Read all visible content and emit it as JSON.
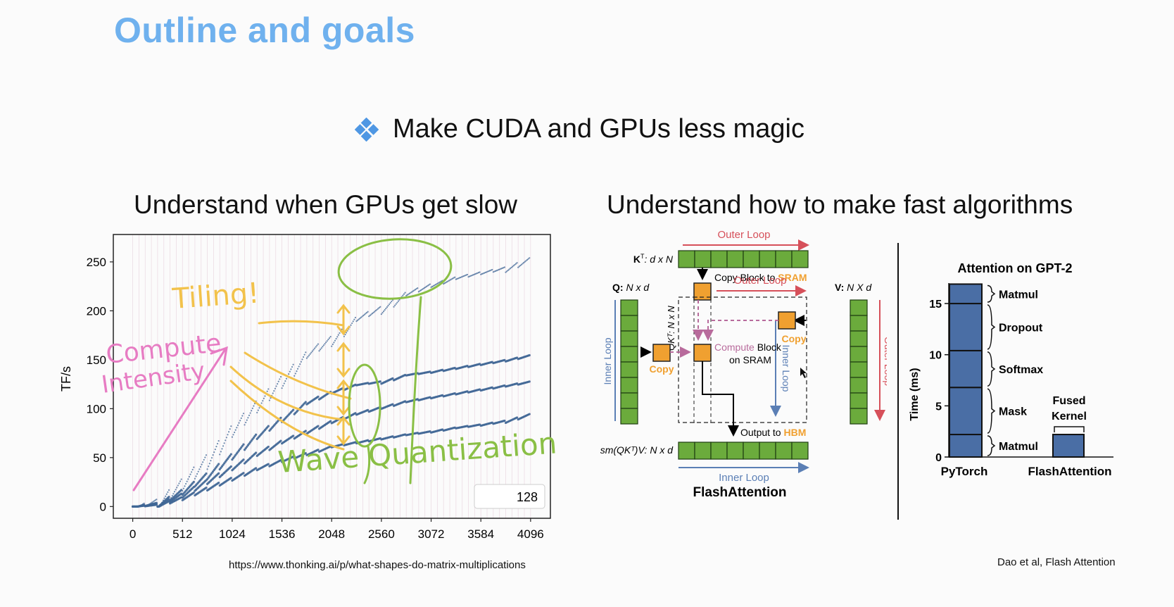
{
  "slide": {
    "title": "Outline and goals",
    "bullet": "Make CUDA and GPUs less magic",
    "left_heading": "Understand when GPUs get slow",
    "right_heading": "Understand how to make fast algorithms",
    "left_source": "https://www.thonking.ai/p/what-shapes-do-matrix-multiplications",
    "right_source": "Dao et al, Flash Attention",
    "colors": {
      "title": "#6fb1ee",
      "bullet": "#4f97e3",
      "series": "#3f6695",
      "yellow_ink": "#f2c24b",
      "green_ink": "#8abf45",
      "pink_ink": "#e77cc3"
    }
  },
  "tflops_chart": {
    "ylabel": "TF/s",
    "yticks": [
      "250",
      "200",
      "150",
      "100",
      "50",
      "0"
    ],
    "xticks": [
      "0",
      "512",
      "1024",
      "1536",
      "2048",
      "2560",
      "3072",
      "3584",
      "4096"
    ],
    "legend": "128",
    "annotations": {
      "tiling": "Tiling!",
      "compute_1": "Compute",
      "compute_2": "Intensity",
      "wave": "Wave Quantization"
    }
  },
  "chart_data": [
    {
      "type": "scatter",
      "xlabel": "",
      "ylabel": "TF/s",
      "xlim": [
        -200,
        4300
      ],
      "ylim": [
        -12,
        278
      ],
      "x_ticks": [
        0,
        512,
        1024,
        1536,
        2048,
        2560,
        3072,
        3584,
        4096
      ],
      "y_ticks": [
        0,
        50,
        100,
        150,
        200,
        250
      ],
      "legend": [
        "128"
      ],
      "legend_position": "bottom-right",
      "series": [
        {
          "values": [
            [
              0,
              0
            ],
            [
              256,
              8
            ],
            [
              512,
              30
            ],
            [
              768,
              55
            ],
            [
              1024,
              85
            ],
            [
              1280,
              110
            ],
            [
              1536,
              135
            ],
            [
              1792,
              160
            ],
            [
              2048,
              175
            ],
            [
              2304,
              195
            ],
            [
              2560,
              205
            ],
            [
              2816,
              220
            ],
            [
              3072,
              228
            ],
            [
              3328,
              235
            ],
            [
              3584,
              240
            ],
            [
              3840,
              245
            ],
            [
              4096,
              255
            ]
          ]
        },
        {
          "values": [
            [
              0,
              0
            ],
            [
              256,
              4
            ],
            [
              512,
              18
            ],
            [
              768,
              35
            ],
            [
              1024,
              55
            ],
            [
              1280,
              75
            ],
            [
              1536,
              92
            ],
            [
              1792,
              108
            ],
            [
              2048,
              118
            ],
            [
              2304,
              125
            ],
            [
              2560,
              128
            ],
            [
              2816,
              135
            ],
            [
              3072,
              138
            ],
            [
              3328,
              142
            ],
            [
              3584,
              146
            ],
            [
              3840,
              150
            ],
            [
              4096,
              155
            ]
          ]
        },
        {
          "values": [
            [
              0,
              0
            ],
            [
              256,
              3
            ],
            [
              512,
              14
            ],
            [
              768,
              28
            ],
            [
              1024,
              42
            ],
            [
              1280,
              56
            ],
            [
              1536,
              68
            ],
            [
              1792,
              78
            ],
            [
              2048,
              88
            ],
            [
              2304,
              96
            ],
            [
              2560,
              102
            ],
            [
              2816,
              108
            ],
            [
              3072,
              112
            ],
            [
              3328,
              116
            ],
            [
              3584,
              120
            ],
            [
              3840,
              124
            ],
            [
              4096,
              128
            ]
          ]
        },
        {
          "values": [
            [
              0,
              0
            ],
            [
              256,
              2
            ],
            [
              512,
              10
            ],
            [
              768,
              20
            ],
            [
              1024,
              30
            ],
            [
              1280,
              40
            ],
            [
              1536,
              48
            ],
            [
              1792,
              55
            ],
            [
              2048,
              62
            ],
            [
              2304,
              66
            ],
            [
              2560,
              70
            ],
            [
              2816,
              74
            ],
            [
              3072,
              77
            ],
            [
              3328,
              81
            ],
            [
              3584,
              84
            ],
            [
              3840,
              88
            ],
            [
              4096,
              95
            ]
          ]
        }
      ]
    },
    {
      "type": "bar",
      "title": "Attention on GPT-2",
      "ylabel": "Time (ms)",
      "ylim": [
        0,
        17
      ],
      "y_ticks": [
        0,
        5,
        10,
        15
      ],
      "categories": [
        "PyTorch",
        "FlashAttention"
      ],
      "series": [
        {
          "name": "Matmul",
          "values": [
            2.2,
            0
          ]
        },
        {
          "name": "Mask",
          "values": [
            4.6,
            0
          ]
        },
        {
          "name": "Softmax",
          "values": [
            3.6,
            0
          ]
        },
        {
          "name": "Dropout",
          "values": [
            4.6,
            0
          ]
        },
        {
          "name": "Matmul",
          "values": [
            1.9,
            0
          ]
        },
        {
          "name": "Fused Kernel",
          "values": [
            0,
            2.2
          ]
        }
      ]
    }
  ],
  "flash_diagram": {
    "outer_loop": "Outer Loop",
    "kt_label_a": "K",
    "kt_label_sup": "T",
    "kt_label_b": ": d x N",
    "copy_block_text": "Copy Block to ",
    "sram": "SRAM",
    "q_label_a": "Q:",
    "q_label_b": " N x d",
    "v_label_a": "V:",
    "v_label_b": " N X d",
    "qkt_label": "QKᵀ: N x N",
    "inner_loop": "Inner Loop",
    "copy": "Copy",
    "compute_block": "Compute",
    "compute_block_b": " Block",
    "on_sram": "on SRAM",
    "output_to": "Output to ",
    "hbm": "HBM",
    "sm_label": "sm(QKᵀ)V: N x d",
    "caption": "FlashAttention",
    "colors": {
      "green": "#6bab3c",
      "orange": "#f0a030",
      "red": "#d6505a",
      "blue": "#5b7fb5",
      "pink": "#b86b9c"
    }
  },
  "attention_chart": {
    "title": "Attention on GPT-2",
    "ylabel": "Time (ms)",
    "yticks": [
      "15",
      "10",
      "5",
      "0"
    ],
    "segments": [
      "Matmul",
      "Dropout",
      "Softmax",
      "Mask",
      "Matmul"
    ],
    "fused": [
      "Fused",
      "Kernel"
    ],
    "categories": [
      "PyTorch",
      "FlashAttention"
    ]
  }
}
